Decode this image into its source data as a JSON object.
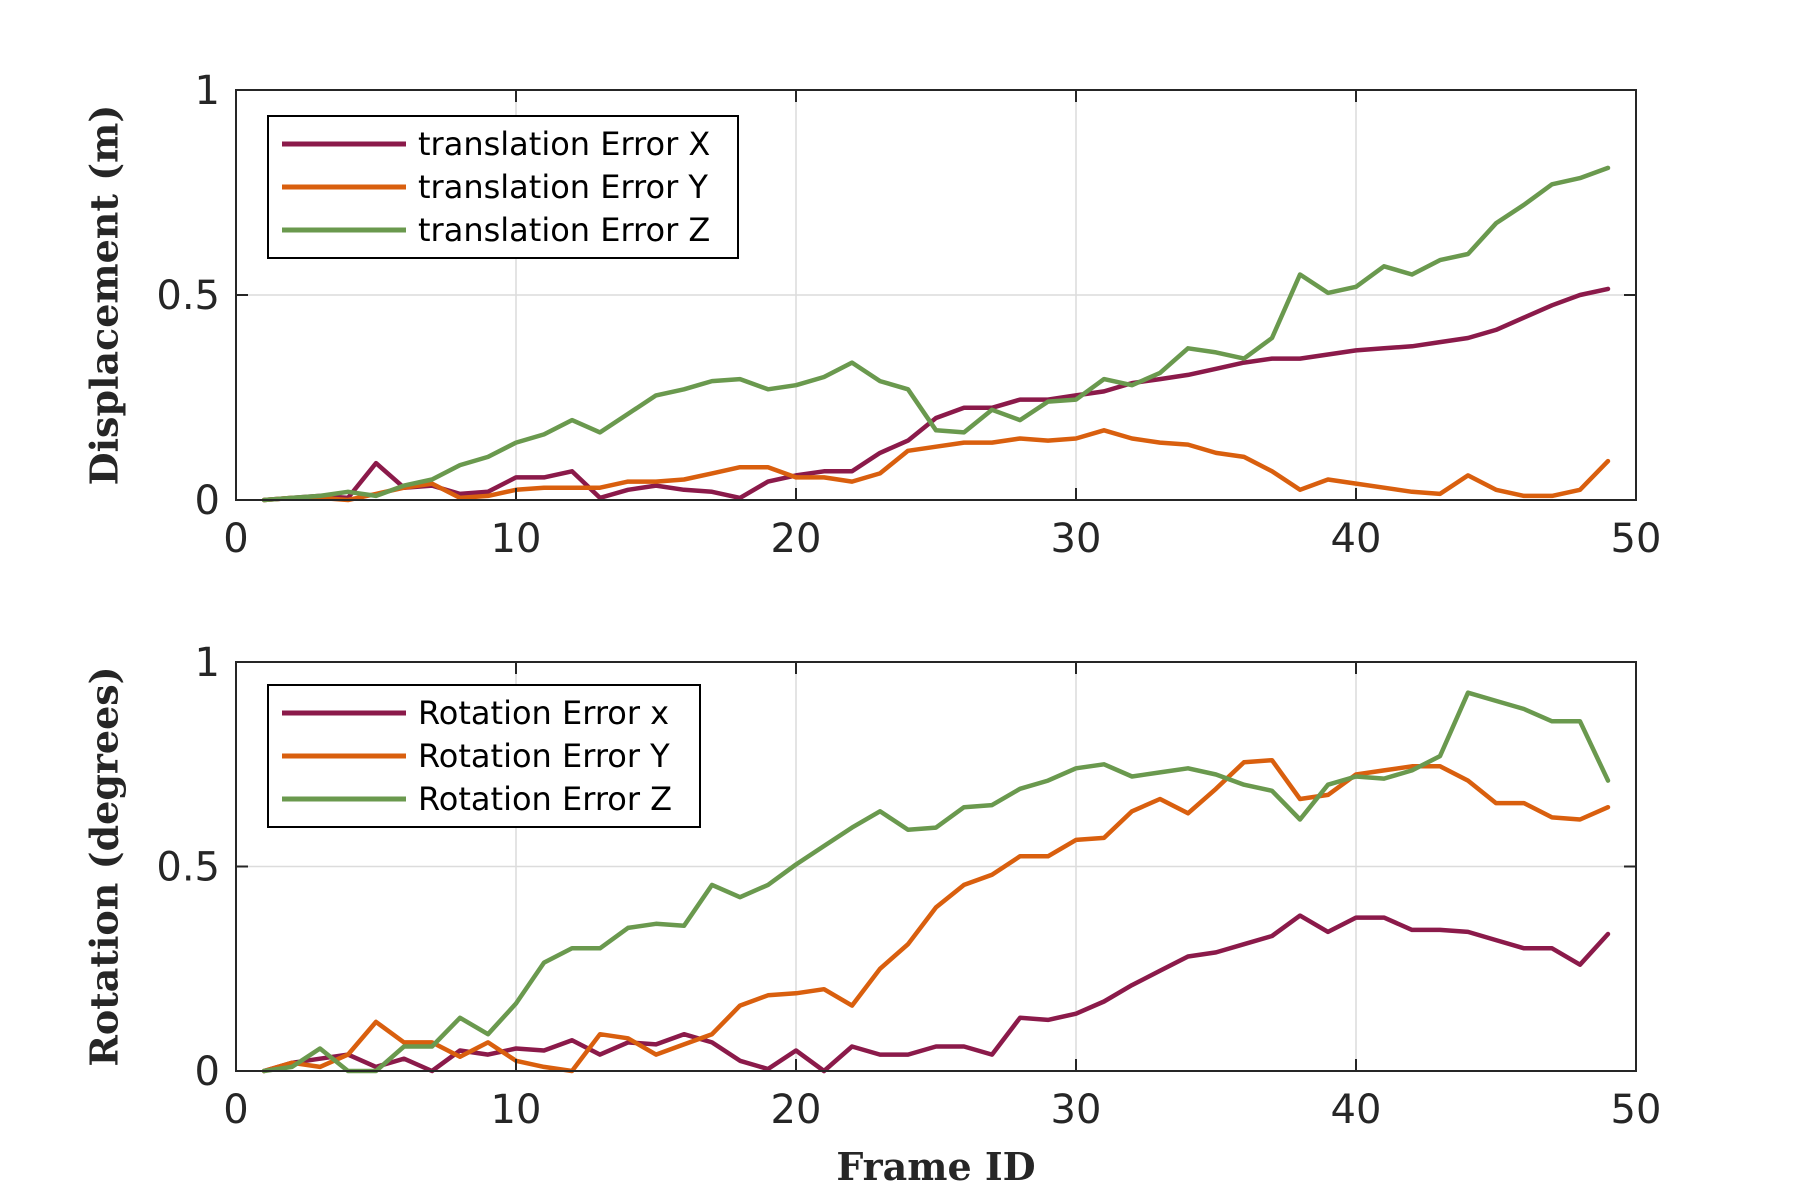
{
  "chart_data": [
    {
      "type": "line",
      "ylabel": "Displacement (m)",
      "xlabel": "",
      "xlim": [
        0,
        50
      ],
      "ylim": [
        0,
        1
      ],
      "xticks": [
        0,
        10,
        20,
        30,
        40,
        50
      ],
      "yticks": [
        0,
        0.5,
        1
      ],
      "xtick_labels": [
        "0",
        "10",
        "20",
        "30",
        "40",
        "50"
      ],
      "ytick_labels": [
        "0",
        "0.5",
        "1"
      ],
      "grid": true,
      "legend_position": "top-left",
      "x": [
        1,
        2,
        3,
        4,
        5,
        6,
        7,
        8,
        9,
        10,
        11,
        12,
        13,
        14,
        15,
        16,
        17,
        18,
        19,
        20,
        21,
        22,
        23,
        24,
        25,
        26,
        27,
        28,
        29,
        30,
        31,
        32,
        33,
        34,
        35,
        36,
        37,
        38,
        39,
        40,
        41,
        42,
        43,
        44,
        45,
        46,
        47,
        48,
        49
      ],
      "series": [
        {
          "name": "translation Error X",
          "color": "#8b1a4a",
          "values": [
            0,
            0.005,
            0.01,
            0.005,
            0.09,
            0.03,
            0.035,
            0.015,
            0.02,
            0.055,
            0.055,
            0.07,
            0.005,
            0.025,
            0.035,
            0.025,
            0.02,
            0.005,
            0.045,
            0.06,
            0.07,
            0.07,
            0.115,
            0.145,
            0.2,
            0.225,
            0.225,
            0.245,
            0.245,
            0.255,
            0.265,
            0.285,
            0.295,
            0.305,
            0.32,
            0.335,
            0.345,
            0.345,
            0.355,
            0.365,
            0.37,
            0.375,
            0.385,
            0.395,
            0.415,
            0.445,
            0.475,
            0.5,
            0.515
          ]
        },
        {
          "name": "translation Error Y",
          "color": "#d95f0e",
          "values": [
            0,
            0.005,
            0.005,
            0,
            0.015,
            0.03,
            0.04,
            0.005,
            0.01,
            0.025,
            0.03,
            0.03,
            0.03,
            0.045,
            0.045,
            0.05,
            0.065,
            0.08,
            0.08,
            0.055,
            0.055,
            0.045,
            0.065,
            0.12,
            0.13,
            0.14,
            0.14,
            0.15,
            0.145,
            0.15,
            0.17,
            0.15,
            0.14,
            0.135,
            0.115,
            0.105,
            0.07,
            0.025,
            0.05,
            0.04,
            0.03,
            0.02,
            0.015,
            0.06,
            0.025,
            0.01,
            0.01,
            0.025,
            0.095
          ]
        },
        {
          "name": "translation Error Z",
          "color": "#6a994e",
          "values": [
            0,
            0.005,
            0.01,
            0.02,
            0.01,
            0.035,
            0.05,
            0.085,
            0.105,
            0.14,
            0.16,
            0.195,
            0.165,
            0.21,
            0.255,
            0.27,
            0.29,
            0.295,
            0.27,
            0.28,
            0.3,
            0.335,
            0.29,
            0.27,
            0.17,
            0.165,
            0.22,
            0.195,
            0.24,
            0.245,
            0.295,
            0.28,
            0.31,
            0.37,
            0.36,
            0.345,
            0.395,
            0.55,
            0.505,
            0.52,
            0.57,
            0.55,
            0.585,
            0.6,
            0.675,
            0.72,
            0.77,
            0.785,
            0.81
          ]
        }
      ]
    },
    {
      "type": "line",
      "ylabel": "Rotation (degrees)",
      "xlabel": "Frame ID",
      "xlim": [
        0,
        50
      ],
      "ylim": [
        0,
        1
      ],
      "xticks": [
        0,
        10,
        20,
        30,
        40,
        50
      ],
      "yticks": [
        0,
        0.5,
        1
      ],
      "xtick_labels": [
        "0",
        "10",
        "20",
        "30",
        "40",
        "50"
      ],
      "ytick_labels": [
        "0",
        "0.5",
        "1"
      ],
      "grid": true,
      "legend_position": "top-left",
      "x": [
        1,
        2,
        3,
        4,
        5,
        6,
        7,
        8,
        9,
        10,
        11,
        12,
        13,
        14,
        15,
        16,
        17,
        18,
        19,
        20,
        21,
        22,
        23,
        24,
        25,
        26,
        27,
        28,
        29,
        30,
        31,
        32,
        33,
        34,
        35,
        36,
        37,
        38,
        39,
        40,
        41,
        42,
        43,
        44,
        45,
        46,
        47,
        48,
        49
      ],
      "series": [
        {
          "name": "Rotation Error x",
          "color": "#8b1a4a",
          "values": [
            0,
            0.02,
            0.03,
            0.04,
            0.01,
            0.03,
            0,
            0.05,
            0.04,
            0.055,
            0.05,
            0.075,
            0.04,
            0.07,
            0.065,
            0.09,
            0.07,
            0.025,
            0.005,
            0.05,
            0,
            0.06,
            0.04,
            0.04,
            0.06,
            0.06,
            0.04,
            0.13,
            0.125,
            0.14,
            0.17,
            0.21,
            0.245,
            0.28,
            0.29,
            0.31,
            0.33,
            0.38,
            0.34,
            0.375,
            0.375,
            0.345,
            0.345,
            0.34,
            0.32,
            0.3,
            0.3,
            0.26,
            0.335
          ]
        },
        {
          "name": "Rotation Error Y",
          "color": "#d95f0e",
          "values": [
            0,
            0.02,
            0.01,
            0.04,
            0.12,
            0.07,
            0.07,
            0.035,
            0.07,
            0.025,
            0.01,
            0,
            0.09,
            0.08,
            0.04,
            0.065,
            0.09,
            0.16,
            0.185,
            0.19,
            0.2,
            0.16,
            0.25,
            0.31,
            0.4,
            0.455,
            0.48,
            0.525,
            0.525,
            0.565,
            0.57,
            0.635,
            0.665,
            0.63,
            0.69,
            0.755,
            0.76,
            0.665,
            0.675,
            0.725,
            0.735,
            0.745,
            0.745,
            0.71,
            0.655,
            0.655,
            0.62,
            0.615,
            0.645
          ]
        },
        {
          "name": "Rotation Error Z",
          "color": "#6a994e",
          "values": [
            0,
            0.01,
            0.055,
            0,
            0,
            0.06,
            0.06,
            0.13,
            0.09,
            0.165,
            0.265,
            0.3,
            0.3,
            0.35,
            0.36,
            0.355,
            0.455,
            0.425,
            0.455,
            0.505,
            0.55,
            0.595,
            0.635,
            0.59,
            0.595,
            0.645,
            0.65,
            0.69,
            0.71,
            0.74,
            0.75,
            0.72,
            0.73,
            0.74,
            0.725,
            0.7,
            0.685,
            0.615,
            0.7,
            0.72,
            0.715,
            0.735,
            0.77,
            0.925,
            0.905,
            0.885,
            0.855,
            0.855,
            0.71
          ]
        }
      ]
    }
  ]
}
